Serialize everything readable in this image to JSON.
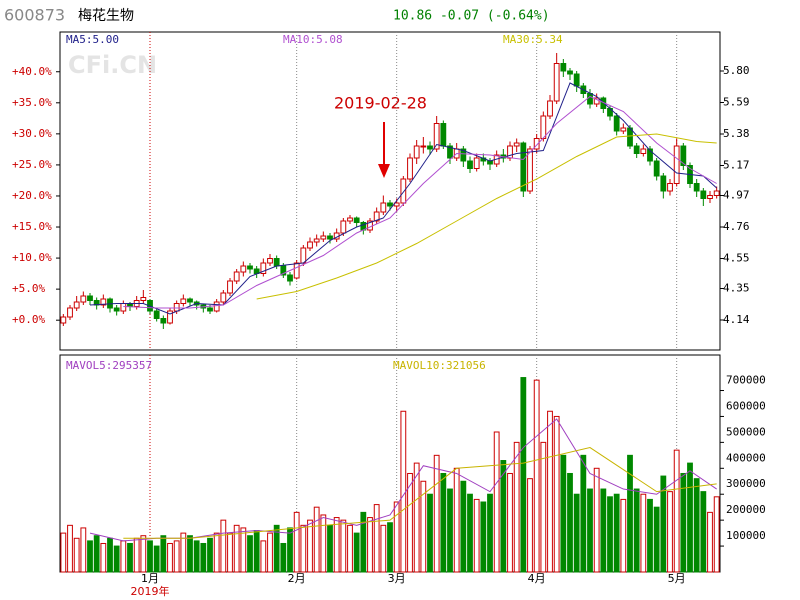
{
  "header": {
    "code": "600873",
    "name": "梅花生物",
    "quote": "10.86 -0.07 (-0.64%)"
  },
  "chart_data": [
    {
      "type": "candlestick",
      "watermark": "CFi.CN",
      "annotation": "2019-02-28",
      "up_color": "#cc0000",
      "down_color": "#008800",
      "categories": [
        null,
        null,
        null,
        null,
        null,
        null,
        null,
        null,
        null,
        null,
        null,
        null,
        null,
        "1月",
        null,
        null,
        null,
        null,
        null,
        null,
        null,
        null,
        null,
        null,
        null,
        null,
        null,
        null,
        null,
        null,
        null,
        null,
        null,
        null,
        null,
        "2月",
        null,
        null,
        null,
        null,
        null,
        null,
        null,
        null,
        null,
        null,
        null,
        null,
        null,
        null,
        "3月",
        null,
        null,
        null,
        null,
        null,
        null,
        null,
        null,
        null,
        null,
        null,
        null,
        null,
        null,
        null,
        null,
        null,
        null,
        null,
        null,
        "4月",
        null,
        null,
        null,
        null,
        null,
        null,
        null,
        null,
        null,
        null,
        null,
        null,
        null,
        null,
        null,
        null,
        null,
        null,
        null,
        null,
        "5月",
        null,
        null,
        null,
        null,
        null,
        null
      ],
      "ohlc": [
        [
          4.12,
          4.18,
          4.1,
          4.16
        ],
        [
          4.16,
          4.24,
          4.14,
          4.22
        ],
        [
          4.22,
          4.3,
          4.2,
          4.26
        ],
        [
          4.26,
          4.33,
          4.24,
          4.3
        ],
        [
          4.3,
          4.32,
          4.24,
          4.27
        ],
        [
          4.27,
          4.29,
          4.21,
          4.24
        ],
        [
          4.24,
          4.31,
          4.22,
          4.28
        ],
        [
          4.28,
          4.29,
          4.19,
          4.22
        ],
        [
          4.22,
          4.24,
          4.17,
          4.2
        ],
        [
          4.2,
          4.27,
          4.18,
          4.25
        ],
        [
          4.25,
          4.26,
          4.2,
          4.23
        ],
        [
          4.23,
          4.3,
          4.21,
          4.27
        ],
        [
          4.27,
          4.34,
          4.25,
          4.29
        ],
        [
          4.27,
          4.28,
          4.18,
          4.2
        ],
        [
          4.2,
          4.22,
          4.13,
          4.15
        ],
        [
          4.15,
          4.17,
          4.08,
          4.12
        ],
        [
          4.12,
          4.22,
          4.11,
          4.2
        ],
        [
          4.2,
          4.27,
          4.18,
          4.25
        ],
        [
          4.25,
          4.31,
          4.23,
          4.28
        ],
        [
          4.28,
          4.29,
          4.23,
          4.26
        ],
        [
          4.26,
          4.27,
          4.21,
          4.24
        ],
        [
          4.24,
          4.25,
          4.19,
          4.22
        ],
        [
          4.22,
          4.24,
          4.18,
          4.2
        ],
        [
          4.2,
          4.28,
          4.19,
          4.26
        ],
        [
          4.26,
          4.34,
          4.24,
          4.32
        ],
        [
          4.32,
          4.42,
          4.3,
          4.4
        ],
        [
          4.4,
          4.48,
          4.38,
          4.46
        ],
        [
          4.46,
          4.53,
          4.43,
          4.5
        ],
        [
          4.5,
          4.52,
          4.45,
          4.48
        ],
        [
          4.48,
          4.5,
          4.42,
          4.45
        ],
        [
          4.45,
          4.55,
          4.43,
          4.52
        ],
        [
          4.52,
          4.58,
          4.5,
          4.55
        ],
        [
          4.55,
          4.57,
          4.48,
          4.5
        ],
        [
          4.5,
          4.52,
          4.42,
          4.44
        ],
        [
          4.44,
          4.46,
          4.37,
          4.4
        ],
        [
          4.42,
          4.54,
          4.41,
          4.52
        ],
        [
          4.52,
          4.64,
          4.5,
          4.62
        ],
        [
          4.62,
          4.69,
          4.6,
          4.66
        ],
        [
          4.66,
          4.71,
          4.63,
          4.68
        ],
        [
          4.68,
          4.73,
          4.66,
          4.7
        ],
        [
          4.7,
          4.72,
          4.65,
          4.68
        ],
        [
          4.68,
          4.75,
          4.66,
          4.72
        ],
        [
          4.72,
          4.82,
          4.7,
          4.8
        ],
        [
          4.8,
          4.84,
          4.78,
          4.82
        ],
        [
          4.82,
          4.83,
          4.76,
          4.79
        ],
        [
          4.79,
          4.8,
          4.71,
          4.74
        ],
        [
          4.74,
          4.82,
          4.72,
          4.8
        ],
        [
          4.8,
          4.89,
          4.78,
          4.86
        ],
        [
          4.86,
          4.97,
          4.84,
          4.92
        ],
        [
          4.92,
          4.94,
          4.87,
          4.9
        ],
        [
          4.9,
          4.95,
          4.86,
          4.92
        ],
        [
          4.92,
          5.1,
          4.9,
          5.08
        ],
        [
          5.08,
          5.25,
          5.06,
          5.22
        ],
        [
          5.22,
          5.34,
          5.18,
          5.3
        ],
        [
          5.3,
          5.36,
          5.25,
          5.3
        ],
        [
          5.3,
          5.33,
          5.24,
          5.28
        ],
        [
          5.28,
          5.5,
          5.26,
          5.45
        ],
        [
          5.45,
          5.47,
          5.28,
          5.3
        ],
        [
          5.3,
          5.32,
          5.18,
          5.22
        ],
        [
          5.22,
          5.32,
          5.2,
          5.28
        ],
        [
          5.28,
          5.3,
          5.16,
          5.2
        ],
        [
          5.2,
          5.23,
          5.12,
          5.15
        ],
        [
          5.15,
          5.25,
          5.13,
          5.22
        ],
        [
          5.22,
          5.25,
          5.17,
          5.2
        ],
        [
          5.2,
          5.22,
          5.14,
          5.18
        ],
        [
          5.18,
          5.27,
          5.16,
          5.24
        ],
        [
          5.24,
          5.28,
          5.19,
          5.22
        ],
        [
          5.22,
          5.33,
          5.2,
          5.3
        ],
        [
          5.3,
          5.35,
          5.26,
          5.32
        ],
        [
          5.32,
          5.33,
          4.96,
          5.0
        ],
        [
          5.0,
          5.3,
          4.98,
          5.28
        ],
        [
          5.28,
          5.38,
          5.25,
          5.35
        ],
        [
          5.35,
          5.53,
          5.33,
          5.5
        ],
        [
          5.5,
          5.64,
          5.48,
          5.6
        ],
        [
          5.6,
          5.92,
          5.58,
          5.85
        ],
        [
          5.85,
          5.88,
          5.76,
          5.8
        ],
        [
          5.8,
          5.82,
          5.74,
          5.78
        ],
        [
          5.78,
          5.8,
          5.66,
          5.7
        ],
        [
          5.7,
          5.72,
          5.62,
          5.65
        ],
        [
          5.65,
          5.68,
          5.55,
          5.58
        ],
        [
          5.58,
          5.65,
          5.56,
          5.62
        ],
        [
          5.62,
          5.63,
          5.52,
          5.55
        ],
        [
          5.55,
          5.57,
          5.47,
          5.5
        ],
        [
          5.5,
          5.52,
          5.37,
          5.4
        ],
        [
          5.4,
          5.45,
          5.38,
          5.42
        ],
        [
          5.42,
          5.44,
          5.28,
          5.3
        ],
        [
          5.3,
          5.32,
          5.22,
          5.25
        ],
        [
          5.25,
          5.31,
          5.23,
          5.28
        ],
        [
          5.28,
          5.3,
          5.17,
          5.2
        ],
        [
          5.2,
          5.22,
          5.07,
          5.1
        ],
        [
          5.1,
          5.12,
          4.95,
          5.0
        ],
        [
          5.0,
          5.08,
          4.97,
          5.05
        ],
        [
          5.05,
          5.35,
          5.03,
          5.3
        ],
        [
          5.3,
          5.32,
          5.14,
          5.17
        ],
        [
          5.17,
          5.19,
          5.02,
          5.05
        ],
        [
          5.05,
          5.08,
          4.96,
          5.0
        ],
        [
          5.0,
          5.02,
          4.9,
          4.95
        ],
        [
          4.95,
          5.0,
          4.92,
          4.97
        ],
        [
          4.97,
          5.03,
          4.95,
          5.0
        ]
      ],
      "ylim": [
        3.94,
        6.06
      ],
      "yticks": [
        4.14,
        4.35,
        4.55,
        4.76,
        4.97,
        5.17,
        5.38,
        5.59,
        {
          "value": 5.8,
          "label": "5.80"
        }
      ],
      "y2lim": [
        -4.8,
        46.4
      ],
      "y2ticks": [
        {
          "value": 0,
          "label": "+0.0%"
        },
        {
          "value": 5,
          "label": "+5.0%"
        },
        {
          "value": 10,
          "label": "+10.0%"
        },
        {
          "value": 15,
          "label": "+15.0%"
        },
        {
          "value": 20,
          "label": "+20.0%"
        },
        {
          "value": 25,
          "label": "+25.0%"
        },
        {
          "value": 30,
          "label": "+30.0%"
        },
        {
          "value": 35,
          "label": "+35.0%"
        },
        {
          "value": 40,
          "label": "+40.0%"
        }
      ],
      "series": [
        {
          "name": "MA5:5.00",
          "color": "#20208a",
          "x": [
            4,
            8,
            12,
            16,
            20,
            24,
            28,
            32,
            36,
            40,
            44,
            48,
            52,
            56,
            60,
            64,
            68,
            72,
            76,
            80,
            84,
            88,
            92,
            96,
            98
          ],
          "values": [
            4.24,
            4.25,
            4.25,
            4.18,
            4.25,
            4.24,
            4.43,
            4.5,
            4.52,
            4.67,
            4.76,
            4.82,
            5.05,
            5.31,
            5.27,
            5.2,
            5.25,
            5.27,
            5.72,
            5.63,
            5.47,
            5.27,
            5.12,
            5.1,
            5.02
          ]
        },
        {
          "name": "MA10:5.08",
          "color": "#b050d0",
          "x": [
            9,
            14,
            19,
            24,
            29,
            34,
            39,
            44,
            49,
            54,
            59,
            64,
            69,
            74,
            79,
            84,
            89,
            94,
            98
          ],
          "values": [
            4.23,
            4.22,
            4.22,
            4.24,
            4.37,
            4.47,
            4.57,
            4.72,
            4.82,
            5.05,
            5.25,
            5.24,
            5.21,
            5.45,
            5.63,
            5.53,
            5.32,
            5.15,
            5.05
          ]
        },
        {
          "name": "MA30:5.34",
          "color": "#c8c000",
          "x": [
            29,
            35,
            41,
            47,
            53,
            59,
            65,
            71,
            77,
            83,
            89,
            95,
            98
          ],
          "values": [
            4.28,
            4.33,
            4.42,
            4.52,
            4.65,
            4.8,
            4.95,
            5.08,
            5.23,
            5.36,
            5.38,
            5.33,
            5.32
          ]
        }
      ]
    },
    {
      "type": "bar",
      "year_label": "2019年",
      "values": [
        150000,
        180000,
        130000,
        170000,
        120000,
        140000,
        110000,
        130000,
        100000,
        120000,
        110000,
        130000,
        140000,
        120000,
        100000,
        140000,
        110000,
        120000,
        150000,
        140000,
        120000,
        110000,
        130000,
        150000,
        200000,
        150000,
        180000,
        170000,
        140000,
        160000,
        120000,
        150000,
        180000,
        110000,
        170000,
        230000,
        180000,
        200000,
        250000,
        220000,
        180000,
        210000,
        200000,
        180000,
        150000,
        230000,
        210000,
        260000,
        180000,
        190000,
        270000,
        620000,
        380000,
        420000,
        350000,
        300000,
        450000,
        380000,
        320000,
        400000,
        350000,
        300000,
        280000,
        270000,
        300000,
        540000,
        430000,
        380000,
        500000,
        750000,
        360000,
        740000,
        500000,
        620000,
        600000,
        450000,
        380000,
        300000,
        450000,
        320000,
        400000,
        320000,
        290000,
        300000,
        280000,
        450000,
        320000,
        300000,
        280000,
        250000,
        370000,
        310000,
        470000,
        380000,
        420000,
        360000,
        310000,
        230000,
        290000
      ],
      "ylim": [
        0,
        837000
      ],
      "yticks": [
        100000,
        200000,
        300000,
        400000,
        500000,
        600000,
        700000
      ],
      "series": [
        {
          "name": "MAVOL5:295357",
          "color": "#a040c0",
          "x": [
            4,
            9,
            14,
            19,
            24,
            29,
            34,
            39,
            44,
            49,
            54,
            59,
            64,
            69,
            74,
            79,
            84,
            89,
            94,
            98
          ],
          "values": [
            150000,
            120000,
            130000,
            130000,
            150000,
            160000,
            150000,
            210000,
            180000,
            220000,
            410000,
            380000,
            310000,
            480000,
            590000,
            380000,
            320000,
            300000,
            390000,
            320000
          ]
        },
        {
          "name": "MAVOL10:321056",
          "color": "#c8b400",
          "x": [
            9,
            19,
            29,
            39,
            49,
            59,
            69,
            79,
            89,
            98
          ],
          "values": [
            130000,
            130000,
            155000,
            180000,
            200000,
            400000,
            420000,
            480000,
            310000,
            340000
          ]
        }
      ]
    }
  ]
}
